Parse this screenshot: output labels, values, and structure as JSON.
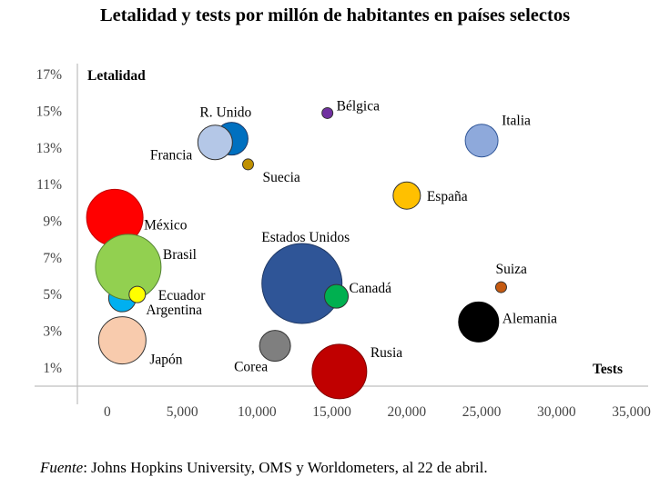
{
  "chart_data": {
    "type": "bubble",
    "title": "Letalidad y tests por millón de habitantes en países selectos",
    "xlabel": "Tests",
    "ylabel": "Letalidad",
    "xlim": [
      -2000,
      36000
    ],
    "ylim": [
      0,
      17.5
    ],
    "xticks": [
      "0",
      "5,000",
      "10,000",
      "15,000",
      "20,000",
      "25,000",
      "30,000",
      "35,000"
    ],
    "xtick_values": [
      0,
      5000,
      10000,
      15000,
      20000,
      25000,
      30000,
      35000
    ],
    "yticks": [
      "1%",
      "3%",
      "5%",
      "7%",
      "9%",
      "11%",
      "13%",
      "15%",
      "17%"
    ],
    "ytick_values": [
      1,
      3,
      5,
      7,
      9,
      11,
      13,
      15,
      17
    ],
    "grid": false,
    "points": [
      {
        "label": "Japón",
        "x": 1000,
        "y": 2.5,
        "r": 26,
        "color": "#F8CBAD",
        "stroke": "#333333"
      },
      {
        "label": "Corea",
        "x": 11200,
        "y": 2.2,
        "r": 17,
        "color": "#7F7F7F",
        "stroke": "#333333"
      },
      {
        "label": "Rusia",
        "x": 15500,
        "y": 0.8,
        "r": 30,
        "color": "#C00000",
        "stroke": "#7F0000"
      },
      {
        "label": "Estados Unidos",
        "x": 13000,
        "y": 5.6,
        "r": 44,
        "color": "#2F5597",
        "stroke": "#1F3864"
      },
      {
        "label": "Canadá",
        "x": 15300,
        "y": 4.9,
        "r": 13,
        "color": "#00B050",
        "stroke": "#333333"
      },
      {
        "label": "Alemania",
        "x": 24800,
        "y": 3.5,
        "r": 22,
        "color": "#000000",
        "stroke": "#000000"
      },
      {
        "label": "Suiza",
        "x": 26300,
        "y": 5.4,
        "r": 6,
        "color": "#C55A11",
        "stroke": "#333333"
      },
      {
        "label": "España",
        "x": 20000,
        "y": 10.4,
        "r": 15,
        "color": "#FFC000",
        "stroke": "#333333"
      },
      {
        "label": "Italia",
        "x": 25000,
        "y": 13.4,
        "r": 18,
        "color": "#8EA9DB",
        "stroke": "#2F5597"
      },
      {
        "label": "Bélgica",
        "x": 14700,
        "y": 14.9,
        "r": 6,
        "color": "#7030A0",
        "stroke": "#333333"
      },
      {
        "label": "Suecia",
        "x": 9400,
        "y": 12.1,
        "r": 6,
        "color": "#BF9000",
        "stroke": "#333333"
      },
      {
        "label": "R. Unido",
        "x": 8300,
        "y": 13.5,
        "r": 18,
        "color": "#0070C0",
        "stroke": "#1F3864"
      },
      {
        "label": "Francia",
        "x": 7200,
        "y": 13.3,
        "r": 19,
        "color": "#B4C7E7",
        "stroke": "#333333"
      },
      {
        "label": "México",
        "x": 500,
        "y": 9.2,
        "r": 31,
        "color": "#FF0000",
        "stroke": "#C00000"
      },
      {
        "label": "Argentina",
        "x": 1000,
        "y": 4.8,
        "r": 15,
        "color": "#00B0F0",
        "stroke": "#333333"
      },
      {
        "label": "Brasil",
        "x": 1400,
        "y": 6.5,
        "r": 36,
        "color": "#92D050",
        "stroke": "#548235"
      },
      {
        "label": "Ecuador",
        "x": 2000,
        "y": 5.0,
        "r": 9,
        "color": "#FFFF00",
        "stroke": "#333333"
      }
    ]
  },
  "source": {
    "prefix": "Fuente",
    "text": ": Johns Hopkins University, OMS y Worldometers, al 22 de abril."
  }
}
